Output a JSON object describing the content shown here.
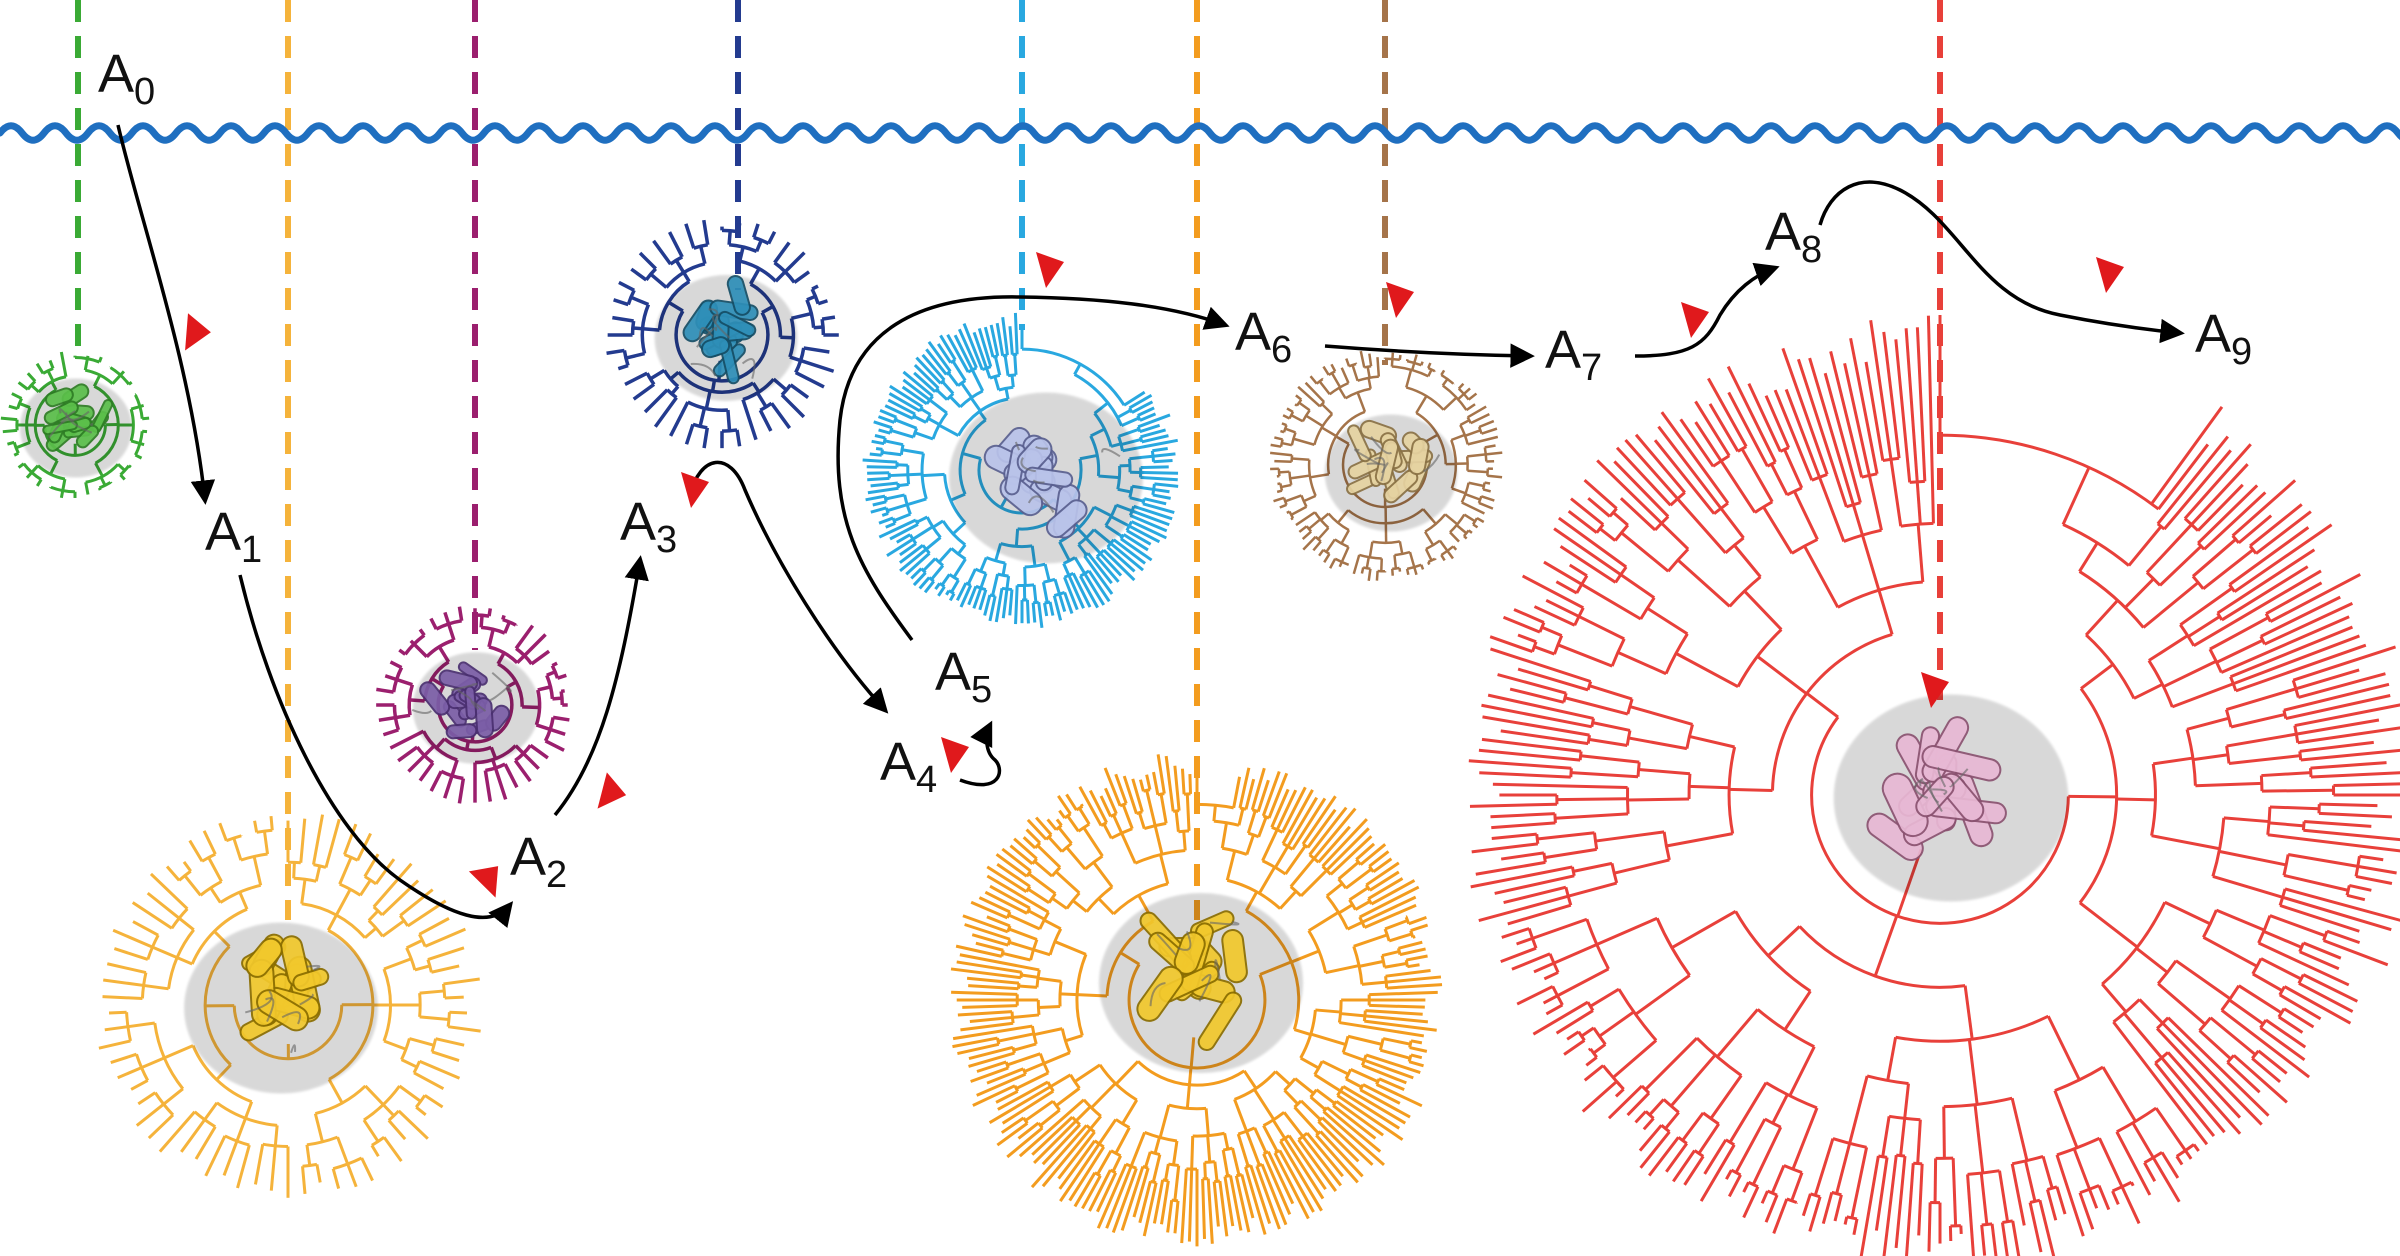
{
  "diagram": {
    "ancestors": [
      {
        "id": "a0",
        "base": "A",
        "sub": "0"
      },
      {
        "id": "a1",
        "base": "A",
        "sub": "1"
      },
      {
        "id": "a2",
        "base": "A",
        "sub": "2"
      },
      {
        "id": "a3",
        "base": "A",
        "sub": "3"
      },
      {
        "id": "a4",
        "base": "A",
        "sub": "4"
      },
      {
        "id": "a5",
        "base": "A",
        "sub": "5"
      },
      {
        "id": "a6",
        "base": "A",
        "sub": "6"
      },
      {
        "id": "a7",
        "base": "A",
        "sub": "7"
      },
      {
        "id": "a8",
        "base": "A",
        "sub": "8"
      },
      {
        "id": "a9",
        "base": "A",
        "sub": "9"
      }
    ],
    "colors": {
      "water": "#1f6fc0",
      "path": "#000000",
      "marker": "#e0191c",
      "lineages": [
        "#3aaa35",
        "#f5b33b",
        "#9b1f6e",
        "#233b8f",
        "#29a8e0",
        "#f39c1f",
        "#a5744a",
        "#e8403a"
      ],
      "structures": {
        "green": "#5bbf4a",
        "yellow": "#f2c82c",
        "purple": "#7b5ea7",
        "teal": "#2e8fb8",
        "lavender": "#b9c3ea",
        "tan": "#e6d3a1",
        "pink": "#e8b8d4"
      }
    },
    "trees": [
      {
        "id": "tree-green",
        "lineage": 0,
        "kind": "small"
      },
      {
        "id": "tree-yellow",
        "lineage": 1,
        "kind": "medium"
      },
      {
        "id": "tree-purple",
        "lineage": 2,
        "kind": "small"
      },
      {
        "id": "tree-navy",
        "lineage": 3,
        "kind": "small"
      },
      {
        "id": "tree-cyan",
        "lineage": 4,
        "kind": "dense"
      },
      {
        "id": "tree-orange",
        "lineage": 5,
        "kind": "dense"
      },
      {
        "id": "tree-brown",
        "lineage": 6,
        "kind": "dense"
      },
      {
        "id": "tree-red",
        "lineage": 7,
        "kind": "large"
      }
    ]
  }
}
